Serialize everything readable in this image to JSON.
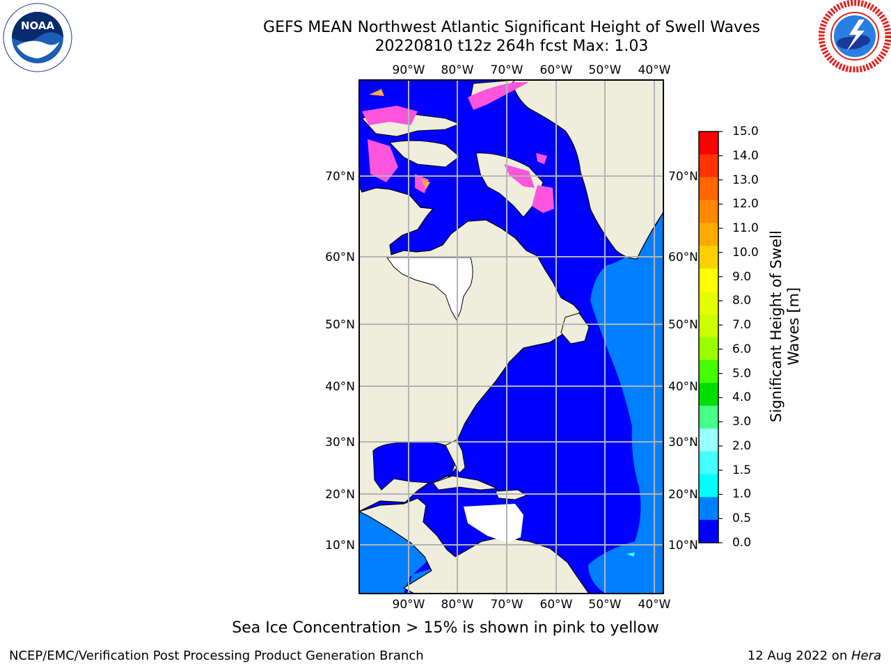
{
  "header": {
    "title_line1": "GEFS MEAN Northwest Atlantic Significant Height of Swell Waves",
    "title_line2": "20220810 t12z 264h fcst   Max: 1.03"
  },
  "logos": {
    "left": "noaa-logo",
    "left_text": "NOAA",
    "right": "national-weather-service-logo"
  },
  "map": {
    "lon_labels": [
      "90°W",
      "80°W",
      "70°W",
      "60°W",
      "50°W",
      "40°W"
    ],
    "lat_labels": [
      "70°N",
      "60°N",
      "50°N",
      "40°N",
      "30°N",
      "20°N",
      "10°N"
    ],
    "colors": {
      "land": "#efeedc",
      "ocean_low": "#0000ff",
      "ocean_mid": "#0080ff",
      "no_data": "#ffffff",
      "ice": "#ff55dd",
      "grid": "#b4b4b4"
    }
  },
  "colorbar": {
    "title": "Significant Height of Swell Waves [m]",
    "ticks": [
      "15.0",
      "14.0",
      "13.0",
      "12.0",
      "11.0",
      "10.0",
      "9.0",
      "8.0",
      "7.0",
      "6.0",
      "5.0",
      "4.0",
      "3.0",
      "2.0",
      "1.5",
      "1.0",
      "0.5",
      "0.0"
    ],
    "colors": [
      "#ff0000",
      "#ff3300",
      "#ff6600",
      "#ff8800",
      "#ffaa00",
      "#ffd000",
      "#ffff00",
      "#e6ff00",
      "#ccff00",
      "#99ff00",
      "#44ff00",
      "#00dd00",
      "#44ff88",
      "#99ffff",
      "#44ffff",
      "#00ffff",
      "#0080ff",
      "#0000ff"
    ]
  },
  "footnote": "Sea Ice Concentration > 15% is shown in pink to yellow",
  "footer": {
    "left": "NCEP/EMC/Verification Post Processing Product Generation Branch",
    "right_prefix": "12 Aug 2022 on ",
    "right_host": "Hera"
  }
}
